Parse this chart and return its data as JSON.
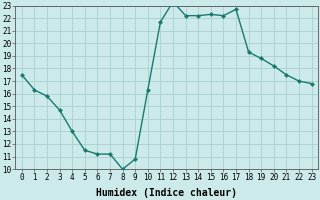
{
  "x": [
    0,
    1,
    2,
    3,
    4,
    5,
    6,
    7,
    8,
    9,
    10,
    11,
    12,
    13,
    14,
    15,
    16,
    17,
    18,
    19,
    20,
    21,
    22,
    23
  ],
  "y": [
    17.5,
    16.3,
    15.8,
    14.7,
    13.0,
    11.5,
    11.2,
    11.2,
    10.0,
    10.8,
    16.3,
    21.7,
    23.3,
    22.2,
    22.2,
    22.3,
    22.2,
    22.7,
    19.3,
    18.8,
    18.2,
    17.5,
    17.0,
    16.8
  ],
  "line_color": "#1a7a6e",
  "marker": "D",
  "marker_size": 2.0,
  "bg_color": "#cceaea",
  "grid_color": "#aacfcf",
  "xlabel": "Humidex (Indice chaleur)",
  "xlim": [
    -0.5,
    23.5
  ],
  "ylim": [
    10,
    23
  ],
  "xticks": [
    0,
    1,
    2,
    3,
    4,
    5,
    6,
    7,
    8,
    9,
    10,
    11,
    12,
    13,
    14,
    15,
    16,
    17,
    18,
    19,
    20,
    21,
    22,
    23
  ],
  "yticks": [
    10,
    11,
    12,
    13,
    14,
    15,
    16,
    17,
    18,
    19,
    20,
    21,
    22,
    23
  ],
  "tick_fontsize": 5.5,
  "xlabel_fontsize": 7.0,
  "line_width": 1.0
}
